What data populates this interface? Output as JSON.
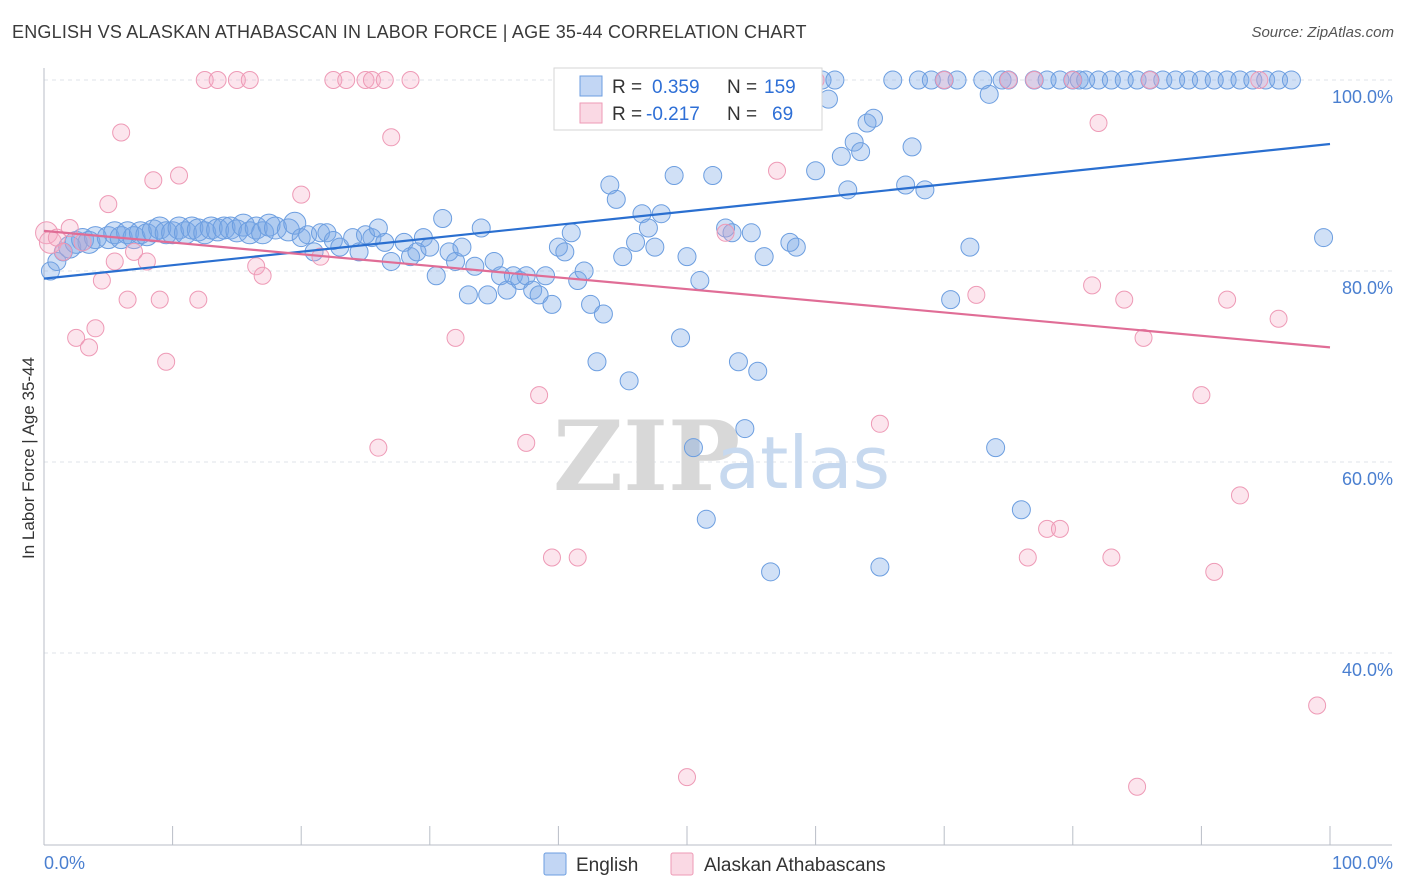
{
  "title": "ENGLISH VS ALASKAN ATHABASCAN IN LABOR FORCE | AGE 35-44 CORRELATION CHART",
  "source": "Source: ZipAtlas.com",
  "watermark": {
    "zip": "ZIP",
    "atlas": "atlas"
  },
  "colors": {
    "english_fill": "rgba(120,165,230,0.35)",
    "english_stroke": "#6c9ee0",
    "english_line": "#2a6fd0",
    "athabascan_fill": "rgba(245,170,195,0.30)",
    "athabascan_stroke": "#ee9ab6",
    "athabascan_line": "#e06d96",
    "grid": "#dfe3ea",
    "axis_label": "#4a7fd0"
  },
  "legend": {
    "rows": [
      {
        "r_label": "R =",
        "r_value": "0.359",
        "n_label": "N =",
        "n_value": "159"
      },
      {
        "r_label": "R =",
        "r_value": "-0.217",
        "n_label": "N =",
        "n_value": "69"
      }
    ]
  },
  "bottom_legend": [
    "English",
    "Alaskan Athabascans"
  ],
  "chart_data": {
    "type": "scatter",
    "xlabel": "",
    "ylabel": "In Labor Force | Age 35-44",
    "xlim": [
      0,
      100
    ],
    "ylim": [
      18,
      102
    ],
    "x_tick_labels": [
      "0.0%",
      "100.0%"
    ],
    "y_ticks": [
      40,
      60,
      80,
      100
    ],
    "y_tick_labels": [
      "40.0%",
      "60.0%",
      "80.0%",
      "100.0%"
    ],
    "grid": true,
    "series": [
      {
        "name": "English",
        "points": [
          [
            0.5,
            80.0
          ],
          [
            1.0,
            81.0
          ],
          [
            1.5,
            82.0
          ],
          [
            2.0,
            82.5
          ],
          [
            2.5,
            83.0
          ],
          [
            3.0,
            83.3
          ],
          [
            3.5,
            83.0
          ],
          [
            4.0,
            83.5
          ],
          [
            5.0,
            83.5
          ],
          [
            5.5,
            84.0
          ],
          [
            6.0,
            83.5
          ],
          [
            6.5,
            84.0
          ],
          [
            7.0,
            83.5
          ],
          [
            7.5,
            84.0
          ],
          [
            8.0,
            83.8
          ],
          [
            8.5,
            84.2
          ],
          [
            9.0,
            84.5
          ],
          [
            9.5,
            84.0
          ],
          [
            10.0,
            84.0
          ],
          [
            10.5,
            84.5
          ],
          [
            11.0,
            84.0
          ],
          [
            11.5,
            84.5
          ],
          [
            12.0,
            84.3
          ],
          [
            12.5,
            84.0
          ],
          [
            13.0,
            84.5
          ],
          [
            13.5,
            84.3
          ],
          [
            14.0,
            84.5
          ],
          [
            14.5,
            84.5
          ],
          [
            15.0,
            84.2
          ],
          [
            15.5,
            84.8
          ],
          [
            16.0,
            84.0
          ],
          [
            16.5,
            84.5
          ],
          [
            17.0,
            84.0
          ],
          [
            17.5,
            84.8
          ],
          [
            18.0,
            84.5
          ],
          [
            19.0,
            84.3
          ],
          [
            19.5,
            85.0
          ],
          [
            20.0,
            83.5
          ],
          [
            20.5,
            83.8
          ],
          [
            21.0,
            82.0
          ],
          [
            21.5,
            84.0
          ],
          [
            22.0,
            84.0
          ],
          [
            22.5,
            83.2
          ],
          [
            23.0,
            82.5
          ],
          [
            24.0,
            83.5
          ],
          [
            24.5,
            82.0
          ],
          [
            25.0,
            83.8
          ],
          [
            25.5,
            83.5
          ],
          [
            26.0,
            84.5
          ],
          [
            26.5,
            83.0
          ],
          [
            27.0,
            81.0
          ],
          [
            28.0,
            83.0
          ],
          [
            28.5,
            81.5
          ],
          [
            29.0,
            82.0
          ],
          [
            29.5,
            83.5
          ],
          [
            30.0,
            82.5
          ],
          [
            30.5,
            79.5
          ],
          [
            31.0,
            85.5
          ],
          [
            31.5,
            82.0
          ],
          [
            32.0,
            81.0
          ],
          [
            32.5,
            82.5
          ],
          [
            33.0,
            77.5
          ],
          [
            33.5,
            80.5
          ],
          [
            34.0,
            84.5
          ],
          [
            34.5,
            77.5
          ],
          [
            35.0,
            81.0
          ],
          [
            35.5,
            79.5
          ],
          [
            36.0,
            78.0
          ],
          [
            36.5,
            79.5
          ],
          [
            37.0,
            79.0
          ],
          [
            37.5,
            79.5
          ],
          [
            38.0,
            78.0
          ],
          [
            38.5,
            77.5
          ],
          [
            39.0,
            79.5
          ],
          [
            39.5,
            76.5
          ],
          [
            40.0,
            82.5
          ],
          [
            40.5,
            82.0
          ],
          [
            41.0,
            84.0
          ],
          [
            41.5,
            79.0
          ],
          [
            42.0,
            80.0
          ],
          [
            42.5,
            76.5
          ],
          [
            43.0,
            70.5
          ],
          [
            43.5,
            75.5
          ],
          [
            44.0,
            89.0
          ],
          [
            44.5,
            87.5
          ],
          [
            45.0,
            81.5
          ],
          [
            45.5,
            68.5
          ],
          [
            46.0,
            83.0
          ],
          [
            46.5,
            86.0
          ],
          [
            47.0,
            84.5
          ],
          [
            47.5,
            82.5
          ],
          [
            48.0,
            86.0
          ],
          [
            49.0,
            90.0
          ],
          [
            49.5,
            73.0
          ],
          [
            50.0,
            81.5
          ],
          [
            50.5,
            61.5
          ],
          [
            51.0,
            79.0
          ],
          [
            51.5,
            54.0
          ],
          [
            52.0,
            90.0
          ],
          [
            53.0,
            84.5
          ],
          [
            53.5,
            84.0
          ],
          [
            54.0,
            70.5
          ],
          [
            54.5,
            63.5
          ],
          [
            55.0,
            84.0
          ],
          [
            55.5,
            69.5
          ],
          [
            56.0,
            81.5
          ],
          [
            56.5,
            48.5
          ],
          [
            58.0,
            83.0
          ],
          [
            58.5,
            82.5
          ],
          [
            60.0,
            90.5
          ],
          [
            60.5,
            100.0
          ],
          [
            61.0,
            98.0
          ],
          [
            61.5,
            100.0
          ],
          [
            62.0,
            92.0
          ],
          [
            62.5,
            88.5
          ],
          [
            63.0,
            93.5
          ],
          [
            63.5,
            92.5
          ],
          [
            64.0,
            95.5
          ],
          [
            64.5,
            96.0
          ],
          [
            65.0,
            49.0
          ],
          [
            66.0,
            100.0
          ],
          [
            67.0,
            89.0
          ],
          [
            67.5,
            93.0
          ],
          [
            68.0,
            100.0
          ],
          [
            68.5,
            88.5
          ],
          [
            69.0,
            100.0
          ],
          [
            70.0,
            100.0
          ],
          [
            70.5,
            77.0
          ],
          [
            71.0,
            100.0
          ],
          [
            72.0,
            82.5
          ],
          [
            73.0,
            100.0
          ],
          [
            73.5,
            98.5
          ],
          [
            74.0,
            61.5
          ],
          [
            74.5,
            100.0
          ],
          [
            75.0,
            100.0
          ],
          [
            76.0,
            55.0
          ],
          [
            77.0,
            100.0
          ],
          [
            78.0,
            100.0
          ],
          [
            79.0,
            100.0
          ],
          [
            80.0,
            100.0
          ],
          [
            80.5,
            100.0
          ],
          [
            81.0,
            100.0
          ],
          [
            82.0,
            100.0
          ],
          [
            83.0,
            100.0
          ],
          [
            84.0,
            100.0
          ],
          [
            85.0,
            100.0
          ],
          [
            86.0,
            100.0
          ],
          [
            87.0,
            100.0
          ],
          [
            88.0,
            100.0
          ],
          [
            89.0,
            100.0
          ],
          [
            90.0,
            100.0
          ],
          [
            91.0,
            100.0
          ],
          [
            92.0,
            100.0
          ],
          [
            93.0,
            100.0
          ],
          [
            94.0,
            100.0
          ],
          [
            95.0,
            100.0
          ],
          [
            96.0,
            100.0
          ],
          [
            97.0,
            100.0
          ],
          [
            99.5,
            83.5
          ]
        ],
        "trend": [
          [
            0,
            79.2
          ],
          [
            100,
            93.3
          ]
        ]
      },
      {
        "name": "Alaskan Athabascans",
        "points": [
          [
            0.2,
            84.0
          ],
          [
            0.5,
            83.0
          ],
          [
            1.0,
            83.5
          ],
          [
            1.5,
            82.0
          ],
          [
            2.0,
            84.5
          ],
          [
            2.5,
            73.0
          ],
          [
            3.0,
            83.0
          ],
          [
            3.5,
            72.0
          ],
          [
            4.0,
            74.0
          ],
          [
            4.5,
            79.0
          ],
          [
            5.0,
            87.0
          ],
          [
            5.5,
            81.0
          ],
          [
            6.0,
            94.5
          ],
          [
            6.5,
            77.0
          ],
          [
            7.0,
            82.0
          ],
          [
            8.0,
            81.0
          ],
          [
            8.5,
            89.5
          ],
          [
            9.0,
            77.0
          ],
          [
            9.5,
            70.5
          ],
          [
            10.5,
            90.0
          ],
          [
            12.0,
            77.0
          ],
          [
            12.5,
            100.0
          ],
          [
            13.5,
            100.0
          ],
          [
            15.0,
            100.0
          ],
          [
            16.0,
            100.0
          ],
          [
            16.5,
            80.5
          ],
          [
            17.0,
            79.5
          ],
          [
            20.0,
            88.0
          ],
          [
            21.5,
            81.5
          ],
          [
            22.5,
            100.0
          ],
          [
            23.5,
            100.0
          ],
          [
            25.0,
            100.0
          ],
          [
            25.5,
            100.0
          ],
          [
            26.0,
            61.5
          ],
          [
            26.5,
            100.0
          ],
          [
            27.0,
            94.0
          ],
          [
            28.5,
            100.0
          ],
          [
            32.0,
            73.0
          ],
          [
            37.5,
            62.0
          ],
          [
            38.5,
            67.0
          ],
          [
            39.5,
            50.0
          ],
          [
            41.5,
            50.0
          ],
          [
            50.0,
            27.0
          ],
          [
            53.0,
            84.0
          ],
          [
            57.0,
            90.5
          ],
          [
            60.0,
            100.0
          ],
          [
            65.0,
            64.0
          ],
          [
            70.0,
            100.0
          ],
          [
            72.5,
            77.5
          ],
          [
            75.0,
            100.0
          ],
          [
            76.5,
            50.0
          ],
          [
            77.0,
            100.0
          ],
          [
            78.0,
            53.0
          ],
          [
            79.0,
            53.0
          ],
          [
            80.0,
            100.0
          ],
          [
            81.5,
            78.5
          ],
          [
            82.0,
            95.5
          ],
          [
            83.0,
            50.0
          ],
          [
            84.0,
            77.0
          ],
          [
            85.0,
            26.0
          ],
          [
            85.5,
            73.0
          ],
          [
            86.0,
            100.0
          ],
          [
            90.0,
            67.0
          ],
          [
            91.0,
            48.5
          ],
          [
            92.0,
            77.0
          ],
          [
            93.0,
            56.5
          ],
          [
            94.5,
            100.0
          ],
          [
            96.0,
            75.0
          ],
          [
            99.0,
            34.5
          ]
        ],
        "trend": [
          [
            0,
            84.2
          ],
          [
            100,
            72.0
          ]
        ]
      }
    ]
  }
}
